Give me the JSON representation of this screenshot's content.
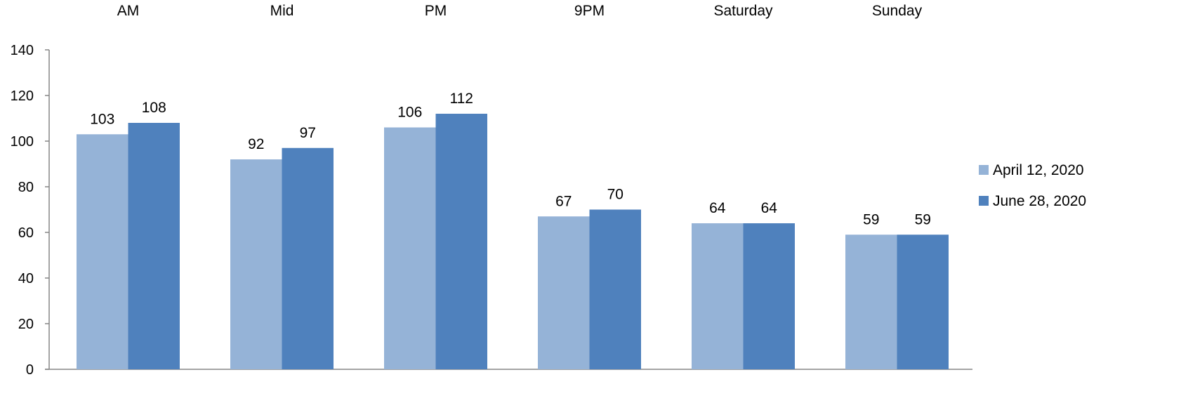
{
  "chart_data": {
    "type": "bar",
    "categories": [
      "AM",
      "Mid",
      "PM",
      "9PM",
      "Saturday",
      "Sunday"
    ],
    "series": [
      {
        "name": "April 12, 2020",
        "values": [
          103,
          92,
          106,
          67,
          64,
          59
        ],
        "color": "#95b3d7"
      },
      {
        "name": "June 28, 2020",
        "values": [
          108,
          97,
          112,
          70,
          64,
          59
        ],
        "color": "#4f81bd"
      }
    ],
    "ylim": [
      0,
      140
    ],
    "yticks": [
      0,
      20,
      40,
      60,
      80,
      100,
      120,
      140
    ],
    "category_labels_position": "top",
    "legend_position": "right",
    "data_labels": true,
    "grid": false,
    "axis_color": "#868686"
  }
}
